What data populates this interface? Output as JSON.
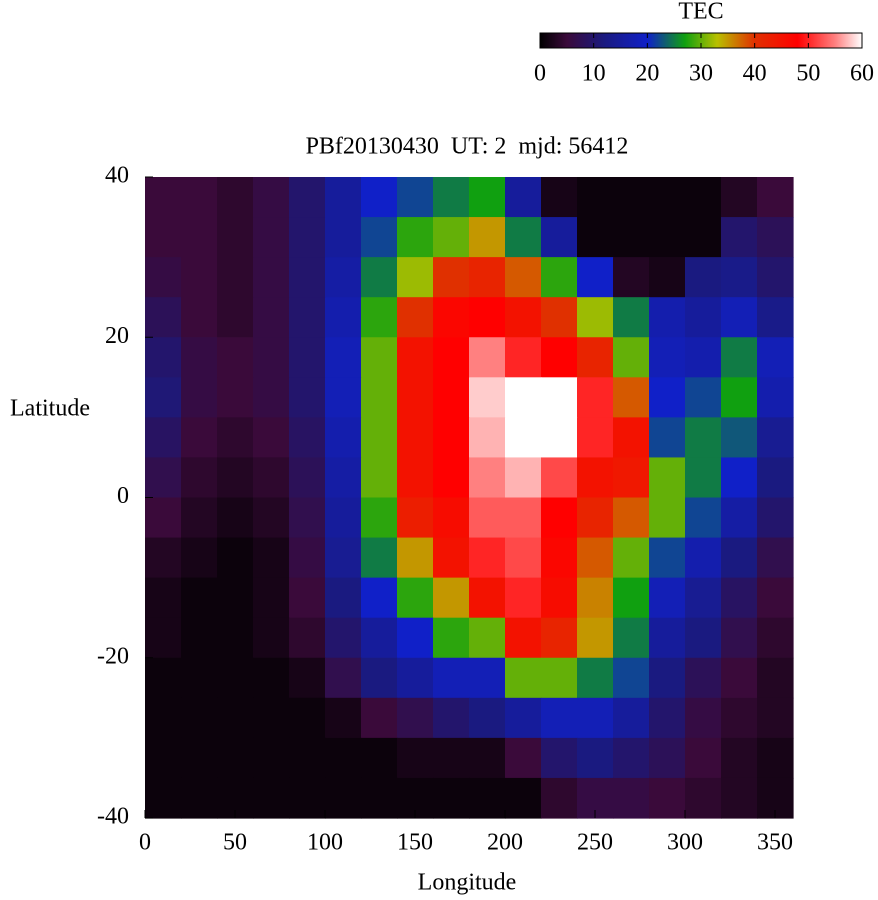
{
  "chart_data": {
    "type": "heatmap",
    "title": "PBf20130430  UT: 2  mjd: 56412",
    "xlabel": "Longitude",
    "ylabel": "Latitude",
    "xlim": [
      0,
      360
    ],
    "xticks": [
      0,
      50,
      100,
      150,
      200,
      250,
      300,
      350
    ],
    "ylim": [
      -40,
      40
    ],
    "yticks": [
      -40,
      -20,
      0,
      20,
      40
    ],
    "x": [
      10,
      30,
      50,
      70,
      90,
      110,
      130,
      150,
      170,
      190,
      210,
      230,
      250,
      270,
      290,
      310,
      330,
      350
    ],
    "y": [
      37.5,
      32.5,
      27.5,
      22.5,
      17.5,
      12.5,
      7.5,
      2.5,
      -2.5,
      -7.5,
      -12.5,
      -17.5,
      -22.5,
      -27.5,
      -32.5,
      -37.5
    ],
    "z": [
      [
        5,
        5,
        4,
        6,
        10,
        15,
        20,
        22,
        25,
        27,
        15,
        2,
        1,
        1,
        1,
        1,
        3,
        5
      ],
      [
        5,
        5,
        4,
        6,
        10,
        15,
        22,
        28,
        30,
        35,
        25,
        15,
        1,
        1,
        1,
        1,
        10,
        8
      ],
      [
        6,
        5,
        4,
        6,
        10,
        16,
        25,
        32,
        40,
        42,
        38,
        28,
        20,
        3,
        2,
        12,
        13,
        10
      ],
      [
        8,
        5,
        4,
        6,
        10,
        17,
        28,
        40,
        47,
        48,
        45,
        40,
        32,
        25,
        17,
        15,
        18,
        13
      ],
      [
        10,
        6,
        5,
        6,
        10,
        18,
        30,
        45,
        48,
        55,
        50,
        48,
        42,
        30,
        18,
        17,
        25,
        18
      ],
      [
        11,
        6,
        5,
        6,
        10,
        18,
        30,
        45,
        48,
        58,
        60,
        60,
        50,
        38,
        20,
        22,
        27,
        17
      ],
      [
        9,
        5,
        4,
        5,
        9,
        17,
        30,
        45,
        48,
        57,
        60,
        60,
        50,
        45,
        22,
        25,
        23,
        14
      ],
      [
        7,
        4,
        3,
        4,
        8,
        16,
        30,
        45,
        48,
        55,
        57,
        52,
        45,
        44,
        30,
        25,
        20,
        12
      ],
      [
        5,
        3,
        2,
        3,
        7,
        15,
        28,
        43,
        46,
        53,
        53,
        48,
        42,
        38,
        30,
        22,
        16,
        10
      ],
      [
        3,
        2,
        1,
        2,
        6,
        14,
        25,
        35,
        45,
        50,
        52,
        47,
        38,
        30,
        22,
        17,
        12,
        7
      ],
      [
        2,
        1,
        1,
        2,
        5,
        12,
        20,
        28,
        35,
        45,
        50,
        46,
        36,
        27,
        18,
        14,
        9,
        5
      ],
      [
        2,
        1,
        1,
        2,
        4,
        10,
        15,
        20,
        28,
        30,
        45,
        42,
        35,
        25,
        15,
        12,
        7,
        4
      ],
      [
        1,
        1,
        1,
        1,
        2,
        7,
        12,
        15,
        18,
        18,
        30,
        30,
        25,
        22,
        12,
        8,
        5,
        3
      ],
      [
        1,
        1,
        1,
        1,
        1,
        2,
        5,
        7,
        10,
        12,
        15,
        18,
        18,
        15,
        10,
        6,
        4,
        3
      ],
      [
        1,
        1,
        1,
        1,
        1,
        1,
        1,
        2,
        2,
        2,
        5,
        10,
        12,
        10,
        8,
        5,
        3,
        2
      ],
      [
        1,
        1,
        1,
        1,
        1,
        1,
        1,
        1,
        1,
        1,
        1,
        4,
        6,
        6,
        5,
        4,
        3,
        2
      ]
    ],
    "colorbar": {
      "label": "TEC",
      "lim": [
        0,
        60
      ],
      "ticks": [
        0,
        10,
        20,
        30,
        40,
        50,
        60
      ],
      "colorscale": [
        [
          0,
          "#000000"
        ],
        [
          5,
          "#3a0a3a"
        ],
        [
          12,
          "#1a1a80"
        ],
        [
          20,
          "#1020c8"
        ],
        [
          27,
          "#10a010"
        ],
        [
          33,
          "#b8c000"
        ],
        [
          40,
          "#e03000"
        ],
        [
          48,
          "#ff0000"
        ],
        [
          55,
          "#ff8080"
        ],
        [
          60,
          "#ffffff"
        ]
      ]
    }
  }
}
